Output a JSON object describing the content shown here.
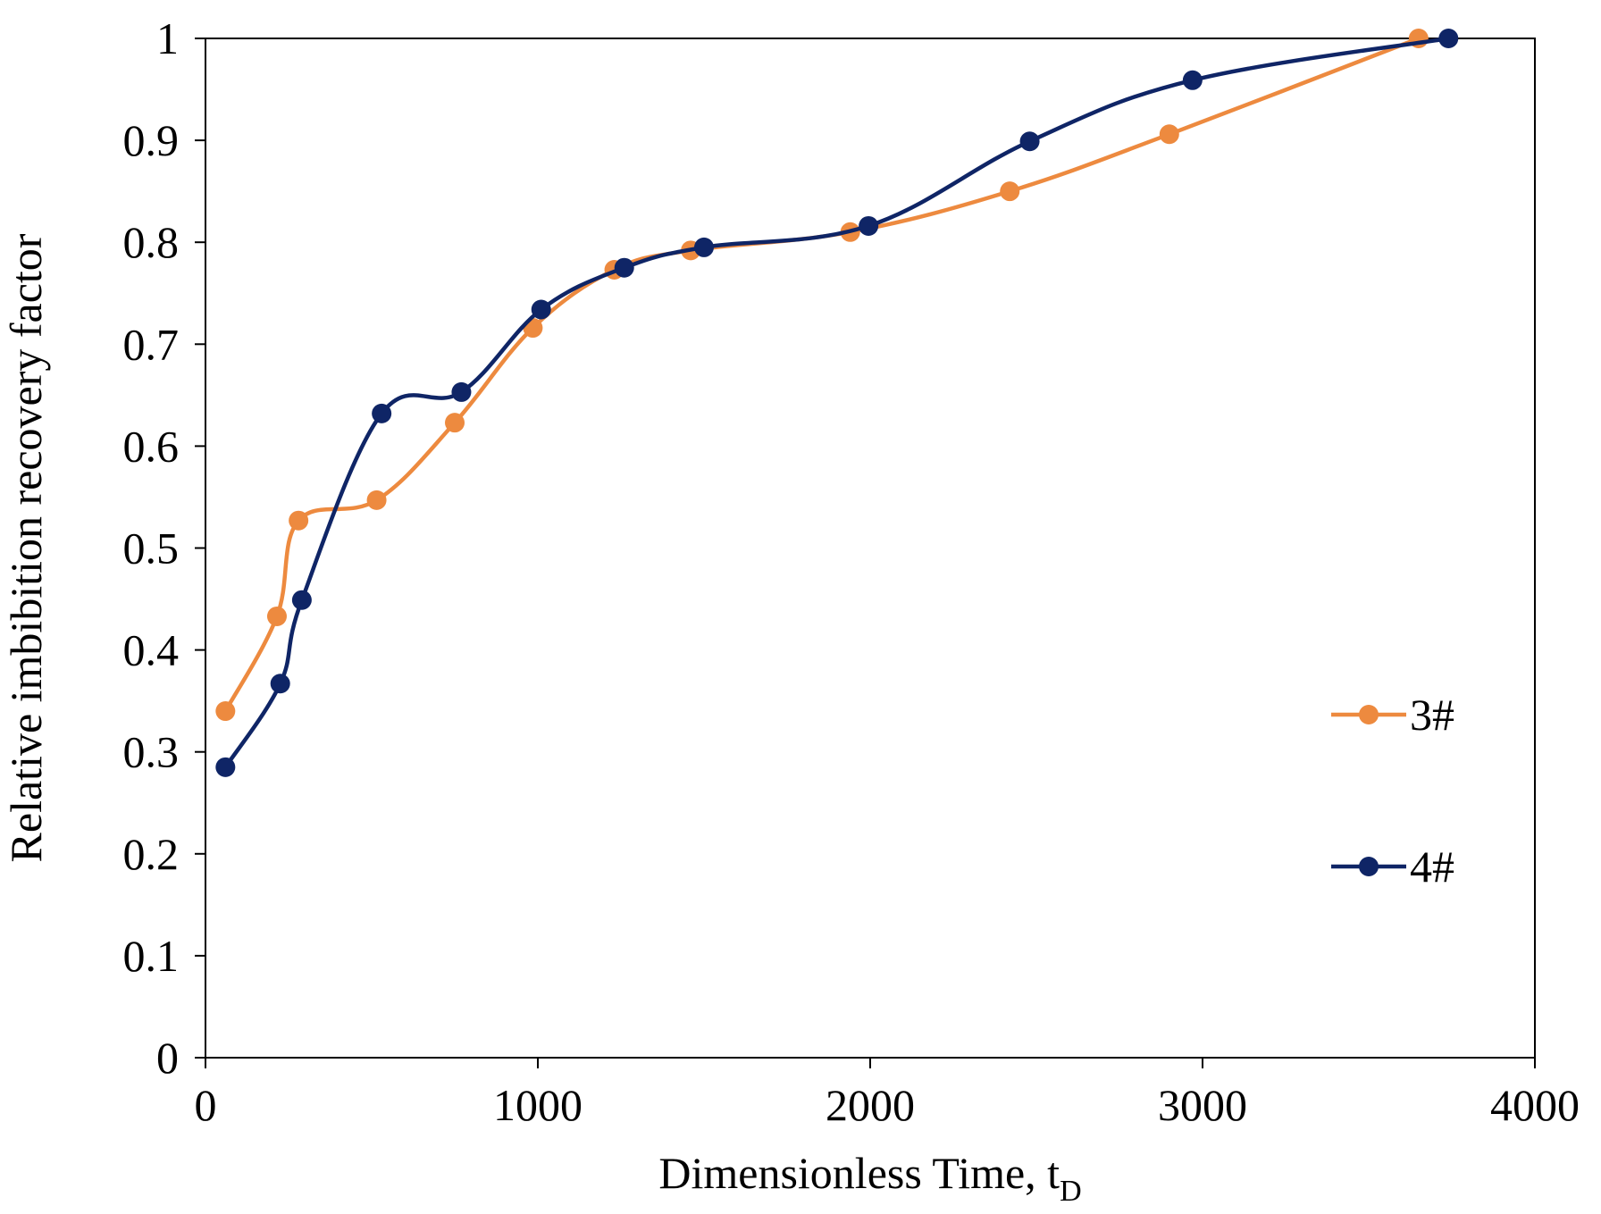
{
  "chart_data": {
    "type": "line",
    "title": "",
    "xlabel": "Dimensionless Time, t",
    "xlabel_subscript": "D",
    "ylabel": "Relative imbibition recovery factor",
    "xlim": [
      0,
      4000
    ],
    "ylim": [
      0,
      1
    ],
    "x_ticks": [
      0,
      1000,
      2000,
      3000,
      4000
    ],
    "x_tick_labels": [
      "0",
      "1000",
      "2000",
      "3000",
      "4000"
    ],
    "y_ticks": [
      0,
      0.1,
      0.2,
      0.3,
      0.4,
      0.5,
      0.6,
      0.7,
      0.8,
      0.9,
      1
    ],
    "y_tick_labels": [
      "0",
      "0.1",
      "0.2",
      "0.3",
      "0.4",
      "0.5",
      "0.6",
      "0.7",
      "0.8",
      "0.9",
      "1"
    ],
    "grid": false,
    "legend_position": "right",
    "series": [
      {
        "name": "3#",
        "color": "#ED8A3F",
        "x": [
          60,
          215,
          280,
          515,
          750,
          985,
          1230,
          1460,
          1940,
          2420,
          2900,
          3650
        ],
        "y": [
          0.34,
          0.433,
          0.527,
          0.547,
          0.623,
          0.716,
          0.773,
          0.792,
          0.81,
          0.85,
          0.906,
          1.0
        ]
      },
      {
        "name": "4#",
        "color": "#0F2566",
        "x": [
          60,
          225,
          290,
          530,
          770,
          1010,
          1260,
          1500,
          1995,
          2480,
          2970,
          3740
        ],
        "y": [
          0.285,
          0.367,
          0.449,
          0.632,
          0.653,
          0.734,
          0.775,
          0.795,
          0.816,
          0.899,
          0.959,
          1.0
        ]
      }
    ]
  }
}
